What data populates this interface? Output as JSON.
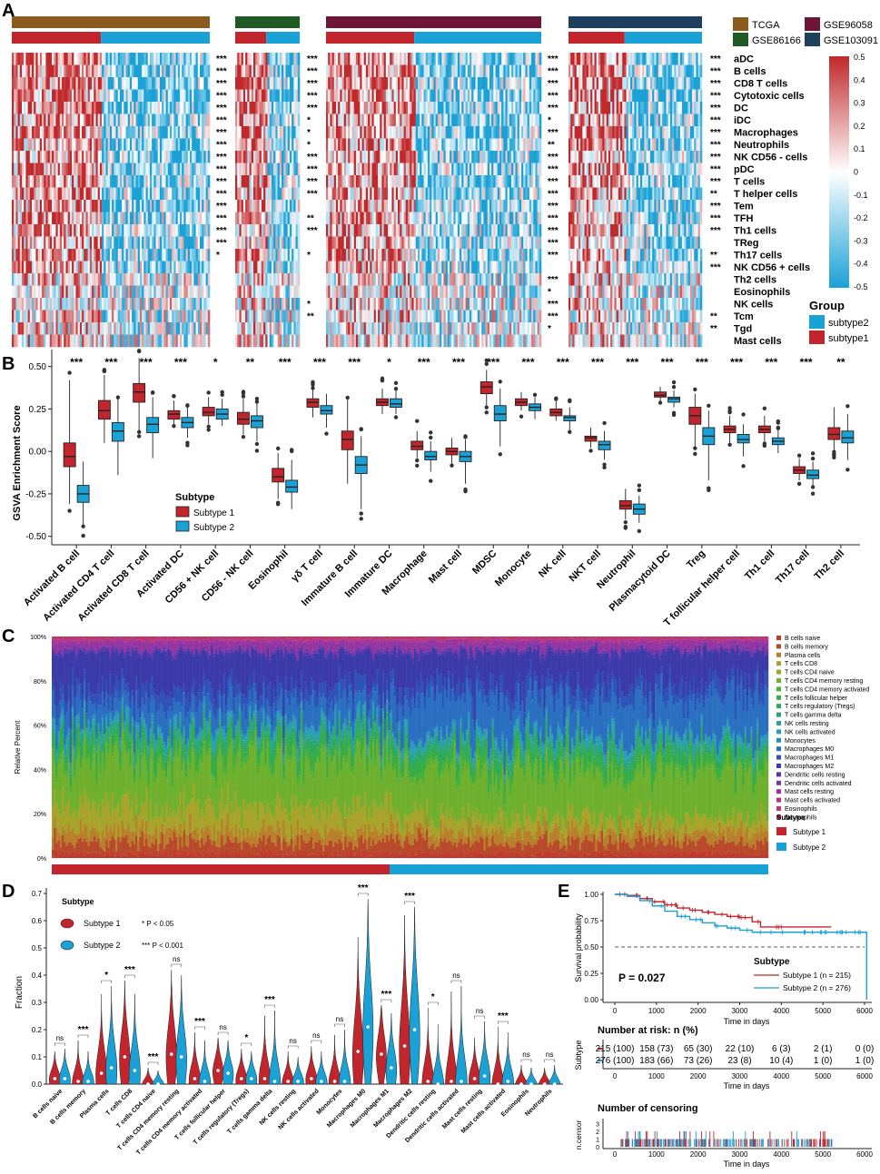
{
  "colors": {
    "high": "#c0282b",
    "low": "#1aa1d6",
    "mid": "#ffffff",
    "subtype1": "#c2262c",
    "subtype2": "#1aa1d6",
    "tcga": "#8a5a1e",
    "gse86166": "#1f5a24",
    "gse96058": "#6e1538",
    "gse103091": "#1e3f5e"
  },
  "panel_labels": [
    "A",
    "B",
    "C",
    "D",
    "E"
  ],
  "panelA": {
    "datasets": [
      "TCGA",
      "GSE86166",
      "GSE96058",
      "GSE103091"
    ],
    "rows": [
      "aDC",
      "B cells",
      "CD8 T cells",
      "Cytotoxic cells",
      "DC",
      "iDC",
      "Macrophages",
      "Neutrophils",
      "NK CD56 - cells",
      "pDC",
      "T cells",
      "T helper cells",
      "Tem",
      "TFH",
      "Th1 cells",
      "TReg",
      "Th17 cells",
      "NK CD56 + cells",
      "Th2 cells",
      "Eosinophils",
      "NK cells",
      "Tcm",
      "Tgd",
      "Mast cells"
    ],
    "sig_tcga": [
      "***",
      "***",
      "***",
      "***",
      "***",
      "***",
      "***",
      "***",
      "***",
      "***",
      "***",
      "***",
      "***",
      "***",
      "***",
      "***",
      "*",
      "",
      "",
      "",
      "",
      "",
      "",
      ""
    ],
    "sig_gse86166": [
      "***",
      "***",
      "***",
      "***",
      "***",
      "*",
      "*",
      "*",
      "***",
      "***",
      "***",
      "***",
      "",
      "**",
      "***",
      "",
      "*",
      "",
      "",
      "",
      "*",
      "**",
      "",
      ""
    ],
    "sig_gse96058": [
      "***",
      "***",
      "***",
      "***",
      "***",
      "*",
      "***",
      "**",
      "***",
      "***",
      "***",
      "***",
      "***",
      "***",
      "***",
      "***",
      "***",
      "",
      "***",
      "*",
      "***",
      "***",
      "*",
      ""
    ],
    "sig_gse103091": [
      "***",
      "***",
      "***",
      "***",
      "***",
      "***",
      "***",
      "***",
      "***",
      "***",
      "***",
      "**",
      "***",
      "***",
      "***",
      "",
      "**",
      "***",
      "",
      "",
      "",
      "**",
      "**",
      ""
    ],
    "legend_ticks": [
      "0.5",
      "0.4",
      "0.3",
      "0.2",
      "0.1",
      "0",
      "-0.1",
      "-0.2",
      "-0.3",
      "-0.4",
      "-0.5"
    ],
    "group_title": "Group",
    "group_items": [
      "subtype2",
      "subtype1"
    ]
  },
  "panelB": {
    "ylabel": "GSVA Enrichment Score",
    "yticks": [
      "0.50",
      "0.25",
      "0.00",
      "-0.25",
      "-0.50"
    ],
    "legend_title": "Subtype",
    "legend_items": [
      "Subtype 1",
      "Subtype 2"
    ],
    "categories": [
      "Activated B cell",
      "Activated CD4 T cell",
      "Activated CD8 T cell",
      "Activated DC",
      "CD56 + NK cell",
      "CD56 - NK cell",
      "Eosinophil",
      "γδ T cell",
      "Immature B cell",
      "Immature DC",
      "Macrophage",
      "Mast cell",
      "MDSC",
      "Monocyte",
      "NK cell",
      "NKT cell",
      "Neutrophil",
      "Plasmacytoid DC",
      "Treg",
      "T follicular helper cell",
      "Th1 cell",
      "Th17 cell",
      "Th2 cell"
    ],
    "significance": [
      "***",
      "***",
      "***",
      "***",
      "*",
      "**",
      "***",
      "***",
      "***",
      "*",
      "***",
      "***",
      "***",
      "***",
      "***",
      "***",
      "***",
      "***",
      "***",
      "***",
      "***",
      "***",
      "**"
    ],
    "subtype1": [
      {
        "min": -0.31,
        "q1": -0.09,
        "med": -0.03,
        "q3": 0.05,
        "max": 0.42
      },
      {
        "min": 0.05,
        "q1": 0.19,
        "med": 0.24,
        "q3": 0.3,
        "max": 0.45
      },
      {
        "min": 0.12,
        "q1": 0.29,
        "med": 0.35,
        "q3": 0.4,
        "max": 0.55
      },
      {
        "min": 0.15,
        "q1": 0.19,
        "med": 0.22,
        "q3": 0.24,
        "max": 0.3
      },
      {
        "min": 0.16,
        "q1": 0.21,
        "med": 0.23,
        "q3": 0.26,
        "max": 0.32
      },
      {
        "min": 0.1,
        "q1": 0.16,
        "med": 0.19,
        "q3": 0.23,
        "max": 0.31
      },
      {
        "min": -0.28,
        "q1": -0.18,
        "med": -0.15,
        "q3": -0.1,
        "max": -0.01
      },
      {
        "min": 0.2,
        "q1": 0.26,
        "med": 0.29,
        "q3": 0.31,
        "max": 0.37
      },
      {
        "min": -0.19,
        "q1": 0.01,
        "med": 0.07,
        "q3": 0.12,
        "max": 0.31
      },
      {
        "min": 0.22,
        "q1": 0.27,
        "med": 0.29,
        "q3": 0.31,
        "max": 0.37
      },
      {
        "min": -0.04,
        "q1": 0.01,
        "med": 0.03,
        "q3": 0.06,
        "max": 0.12
      },
      {
        "min": -0.08,
        "q1": -0.02,
        "med": 0.0,
        "q3": 0.02,
        "max": 0.08
      },
      {
        "min": 0.27,
        "q1": 0.34,
        "med": 0.38,
        "q3": 0.41,
        "max": 0.48
      },
      {
        "min": 0.24,
        "q1": 0.27,
        "med": 0.29,
        "q3": 0.31,
        "max": 0.35
      },
      {
        "min": 0.18,
        "q1": 0.21,
        "med": 0.23,
        "q3": 0.25,
        "max": 0.3
      },
      {
        "min": 0.02,
        "q1": 0.06,
        "med": 0.08,
        "q3": 0.09,
        "max": 0.14
      },
      {
        "min": -0.4,
        "q1": -0.34,
        "med": -0.32,
        "q3": -0.29,
        "max": -0.22
      },
      {
        "min": 0.29,
        "q1": 0.32,
        "med": 0.33,
        "q3": 0.35,
        "max": 0.38
      },
      {
        "min": 0.03,
        "q1": 0.16,
        "med": 0.21,
        "q3": 0.26,
        "max": 0.34
      },
      {
        "min": 0.05,
        "q1": 0.11,
        "med": 0.13,
        "q3": 0.15,
        "max": 0.21
      },
      {
        "min": 0.06,
        "q1": 0.11,
        "med": 0.13,
        "q3": 0.15,
        "max": 0.21
      },
      {
        "min": -0.17,
        "q1": -0.13,
        "med": -0.11,
        "q3": -0.09,
        "max": -0.04
      },
      {
        "min": 0.0,
        "q1": 0.07,
        "med": 0.1,
        "q3": 0.14,
        "max": 0.26
      }
    ],
    "subtype2": [
      {
        "min": -0.44,
        "q1": -0.3,
        "med": -0.25,
        "q3": -0.2,
        "max": -0.06
      },
      {
        "min": -0.14,
        "q1": 0.06,
        "med": 0.12,
        "q3": 0.17,
        "max": 0.31
      },
      {
        "min": -0.04,
        "q1": 0.11,
        "med": 0.16,
        "q3": 0.2,
        "max": 0.32
      },
      {
        "min": 0.08,
        "q1": 0.14,
        "med": 0.17,
        "q3": 0.2,
        "max": 0.26
      },
      {
        "min": 0.15,
        "q1": 0.19,
        "med": 0.22,
        "q3": 0.25,
        "max": 0.31
      },
      {
        "min": 0.06,
        "q1": 0.14,
        "med": 0.18,
        "q3": 0.21,
        "max": 0.28
      },
      {
        "min": -0.34,
        "q1": -0.24,
        "med": -0.21,
        "q3": -0.17,
        "max": -0.05
      },
      {
        "min": 0.14,
        "q1": 0.22,
        "med": 0.24,
        "q3": 0.27,
        "max": 0.34
      },
      {
        "min": -0.34,
        "q1": -0.13,
        "med": -0.08,
        "q3": -0.03,
        "max": 0.09
      },
      {
        "min": 0.22,
        "q1": 0.26,
        "med": 0.28,
        "q3": 0.31,
        "max": 0.36
      },
      {
        "min": -0.12,
        "q1": -0.05,
        "med": -0.03,
        "q3": 0.0,
        "max": 0.06
      },
      {
        "min": -0.19,
        "q1": -0.06,
        "med": -0.03,
        "q3": 0.0,
        "max": 0.07
      },
      {
        "min": 0.03,
        "q1": 0.18,
        "med": 0.22,
        "q3": 0.27,
        "max": 0.37
      },
      {
        "min": 0.19,
        "q1": 0.24,
        "med": 0.26,
        "q3": 0.28,
        "max": 0.32
      },
      {
        "min": 0.12,
        "q1": 0.18,
        "med": 0.2,
        "q3": 0.21,
        "max": 0.26
      },
      {
        "min": -0.05,
        "q1": 0.01,
        "med": 0.04,
        "q3": 0.06,
        "max": 0.12
      },
      {
        "min": -0.42,
        "q1": -0.37,
        "med": -0.34,
        "q3": -0.31,
        "max": -0.26
      },
      {
        "min": 0.26,
        "q1": 0.29,
        "med": 0.31,
        "q3": 0.32,
        "max": 0.36
      },
      {
        "min": -0.17,
        "q1": 0.04,
        "med": 0.09,
        "q3": 0.14,
        "max": 0.24
      },
      {
        "min": -0.03,
        "q1": 0.05,
        "med": 0.07,
        "q3": 0.1,
        "max": 0.16
      },
      {
        "min": -0.01,
        "q1": 0.04,
        "med": 0.06,
        "q3": 0.08,
        "max": 0.13
      },
      {
        "min": -0.2,
        "q1": -0.16,
        "med": -0.14,
        "q3": -0.11,
        "max": -0.06
      },
      {
        "min": -0.05,
        "q1": 0.05,
        "med": 0.08,
        "q3": 0.12,
        "max": 0.22
      }
    ]
  },
  "panelC": {
    "ylabel": "Relative Percent",
    "yticks": [
      "100%",
      "80%",
      "60%",
      "40%",
      "20%",
      "0%"
    ],
    "cell_types": [
      "B cells naive",
      "B cells memory",
      "Plasma cells",
      "T cells CD8",
      "T cells CD4 naive",
      "T cells CD4 memory resting",
      "T cells CD4 memory activated",
      "T cells follicular helper",
      "T cells regulatory (Tregs)",
      "T cells gamma delta",
      "NK cells resting",
      "NK cells activated",
      "Monocytes",
      "Macrophages M0",
      "Macrophages M1",
      "Macrophages M2",
      "Dendritic cells resting",
      "Dendritic cells activated",
      "Mast cells resting",
      "Mast cells activated",
      "Eosinophils",
      "Neutrophils"
    ],
    "cell_colors": [
      "#c0392b",
      "#b8492a",
      "#b8802a",
      "#a8a32a",
      "#8fae2a",
      "#6fb02e",
      "#4fb035",
      "#38ad45",
      "#2aa860",
      "#2aa37e",
      "#2aa39c",
      "#2a9fb4",
      "#2a8cc0",
      "#2a6fc0",
      "#2f52b8",
      "#3b3aa8",
      "#5a35a8",
      "#7a35a8",
      "#9535a0",
      "#b03590",
      "#c0357a",
      "#c03560"
    ],
    "legend_title": "Subtype",
    "legend_items": [
      "Subtype 1",
      "Subtype 2"
    ]
  },
  "panelD": {
    "ylabel": "Fraction",
    "yticks": [
      "0.7",
      "0.6",
      "0.5",
      "0.4",
      "0.3",
      "0.2",
      "0.1",
      "0.0"
    ],
    "legend_title": "Subtype",
    "legend_items": [
      "Subtype 1",
      "Subtype 2"
    ],
    "p_notes": [
      "* P < 0.05",
      "*** P < 0.001"
    ],
    "categories": [
      "B cells naive",
      "B cells memory",
      "Plasma cells",
      "T cells CD8",
      "T cells CD4 naive",
      "T cells CD4 memory resting",
      "T cells CD4 memory activated",
      "T cells follicular helper",
      "T cells regulatory (Tregs)",
      "T cells gamma delta",
      "NK cells resting",
      "NK cells activated",
      "Monocytes",
      "Macrophages M0",
      "Macrophages M1",
      "Macrophages M2",
      "Dendritic cells resting",
      "Dendritic cells activated",
      "Mast cells resting",
      "Mast cells activated",
      "Eosinophils",
      "Neutrophils"
    ],
    "significance": [
      "ns",
      "***",
      "*",
      "***",
      "***",
      "ns",
      "***",
      "ns",
      "*",
      "***",
      "ns",
      "ns",
      "ns",
      "***",
      "***",
      "***",
      "*",
      "ns",
      "ns",
      "***",
      "ns",
      "ns"
    ],
    "max_s1": [
      0.12,
      0.16,
      0.33,
      0.38,
      0.06,
      0.42,
      0.19,
      0.17,
      0.13,
      0.25,
      0.12,
      0.14,
      0.18,
      0.54,
      0.29,
      0.62,
      0.28,
      0.34,
      0.17,
      0.21,
      0.07,
      0.06
    ],
    "max_s2": [
      0.13,
      0.12,
      0.36,
      0.33,
      0.05,
      0.4,
      0.16,
      0.16,
      0.12,
      0.27,
      0.1,
      0.12,
      0.2,
      0.68,
      0.26,
      0.65,
      0.22,
      0.36,
      0.23,
      0.19,
      0.06,
      0.07
    ],
    "median_s1": [
      0.02,
      0.01,
      0.04,
      0.1,
      0.0,
      0.11,
      0.02,
      0.05,
      0.02,
      0.02,
      0.01,
      0.02,
      0.01,
      0.12,
      0.11,
      0.14,
      0.01,
      0.01,
      0.02,
      0.0,
      0.0,
      0.0
    ],
    "median_s2": [
      0.02,
      0.01,
      0.06,
      0.05,
      0.0,
      0.1,
      0.01,
      0.04,
      0.02,
      0.01,
      0.01,
      0.01,
      0.01,
      0.21,
      0.06,
      0.2,
      0.0,
      0.01,
      0.03,
      0.01,
      0.0,
      0.0
    ]
  },
  "panelE": {
    "ylabel": "Survival probability",
    "xlabel": "Time in days",
    "yticks": [
      "1.00",
      "0.75",
      "0.50",
      "0.25",
      "0.00"
    ],
    "xticks": [
      "0",
      "1000",
      "2000",
      "3000",
      "4000",
      "5000",
      "6000"
    ],
    "pvalue": "P = 0.027",
    "legend_title": "Subtype",
    "legend_items": [
      "Subtype 1 (n = 215)",
      "Subtype 2 (n = 276)"
    ],
    "km_s1": [
      [
        0,
        1.0
      ],
      [
        300,
        0.99
      ],
      [
        600,
        0.96
      ],
      [
        900,
        0.93
      ],
      [
        1200,
        0.9
      ],
      [
        1500,
        0.87
      ],
      [
        1800,
        0.85
      ],
      [
        2100,
        0.83
      ],
      [
        2400,
        0.81
      ],
      [
        2700,
        0.79
      ],
      [
        3000,
        0.78
      ],
      [
        3300,
        0.74
      ],
      [
        3500,
        0.69
      ],
      [
        4000,
        0.69
      ],
      [
        5200,
        0.69
      ]
    ],
    "km_s2": [
      [
        0,
        1.0
      ],
      [
        300,
        0.98
      ],
      [
        600,
        0.94
      ],
      [
        900,
        0.89
      ],
      [
        1200,
        0.84
      ],
      [
        1500,
        0.79
      ],
      [
        1800,
        0.76
      ],
      [
        2100,
        0.73
      ],
      [
        2400,
        0.7
      ],
      [
        2700,
        0.68
      ],
      [
        3000,
        0.66
      ],
      [
        3300,
        0.64
      ],
      [
        3600,
        0.64
      ],
      [
        6000,
        0.64
      ],
      [
        6050,
        0.0
      ]
    ],
    "risk_title": "Number at risk: n (%)",
    "risk_ylabel": "Subtype",
    "risk_s1": [
      "215 (100)",
      "158 (73)",
      "65 (30)",
      "22 (10)",
      "6 (3)",
      "2 (1)",
      "0 (0)"
    ],
    "risk_s2": [
      "276 (100)",
      "183 (66)",
      "73 (26)",
      "23 (8)",
      "10 (4)",
      "1 (0)",
      "1 (0)"
    ],
    "censor_title": "Number of censoring",
    "censor_ylabel": "n.censor",
    "censor_yticks": [
      "3",
      "2",
      "1",
      "0"
    ]
  }
}
